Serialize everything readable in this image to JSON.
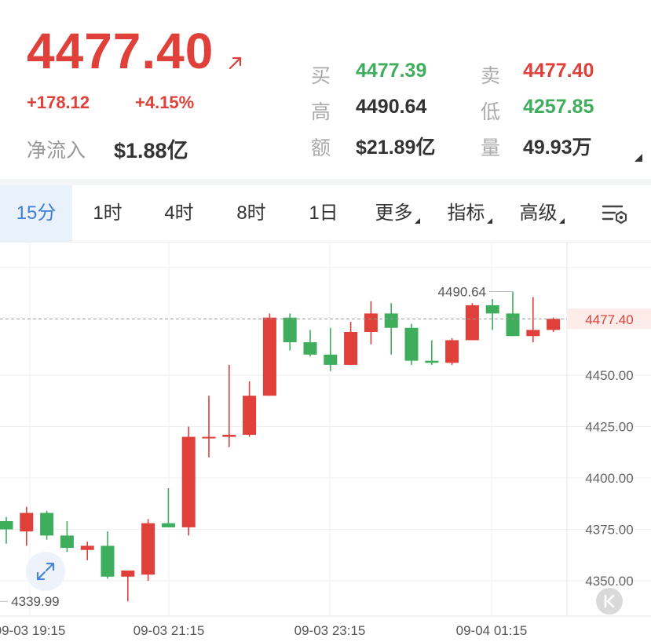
{
  "quote": {
    "price": "4477.40",
    "change": "+178.12",
    "change_pct": "+4.15%",
    "net_inflow_label": "净流入",
    "net_inflow_value": "$1.88亿",
    "up_color": "#e0403a",
    "down_color": "#3fae5c",
    "arrow_icon": "arrow-up-right-icon"
  },
  "stats": {
    "bid_label": "买",
    "bid": "4477.39",
    "ask_label": "卖",
    "ask": "4477.40",
    "high_label": "高",
    "high": "4490.64",
    "low_label": "低",
    "low": "4257.85",
    "amount_label": "额",
    "amount": "$21.89亿",
    "volume_label": "量",
    "volume": "49.93万"
  },
  "tabs": [
    {
      "label": "15分",
      "active": true
    },
    {
      "label": "1时"
    },
    {
      "label": "4时"
    },
    {
      "label": "8时"
    },
    {
      "label": "1日"
    },
    {
      "label": "更多",
      "dropdown": true
    },
    {
      "label": "指标",
      "dropdown": true
    },
    {
      "label": "高级",
      "dropdown": true
    }
  ],
  "icons": {
    "settings": "chart-settings-icon",
    "expand": "expand-icon",
    "k": "k-line-icon"
  },
  "chart_data": {
    "type": "candlestick",
    "interval": "15分",
    "y_ticks": [
      4450.0,
      4425.0,
      4400.0,
      4375.0,
      4350.0
    ],
    "y_tick_labels": [
      "4450.00",
      "4425.00",
      "4400.00",
      "4375.00",
      "4350.00"
    ],
    "x_tick_labels": [
      "09-03 19:15",
      "09-03 21:15",
      "09-03 23:15",
      "09-04 01:15"
    ],
    "current_price": 4477.4,
    "current_price_label": "4477.40",
    "high_annotation": {
      "value": 4490.64,
      "label": "4490.64"
    },
    "low_annotation": {
      "value": 4339.99,
      "label": "4339.99"
    },
    "grid": true,
    "candles": [
      {
        "o": 4379,
        "h": 4381,
        "l": 4368,
        "c": 4375
      },
      {
        "o": 4374,
        "h": 4386,
        "l": 4367,
        "c": 4383
      },
      {
        "o": 4383,
        "h": 4384,
        "l": 4370,
        "c": 4372
      },
      {
        "o": 4372,
        "h": 4379,
        "l": 4364,
        "c": 4366
      },
      {
        "o": 4365,
        "h": 4369,
        "l": 4360,
        "c": 4367
      },
      {
        "o": 4367,
        "h": 4374,
        "l": 4351,
        "c": 4352
      },
      {
        "o": 4352,
        "h": 4355,
        "l": 4340,
        "c": 4355
      },
      {
        "o": 4353,
        "h": 4380,
        "l": 4350,
        "c": 4378
      },
      {
        "o": 4378,
        "h": 4395,
        "l": 4376,
        "c": 4376
      },
      {
        "o": 4376,
        "h": 4425,
        "l": 4372,
        "c": 4420
      },
      {
        "o": 4420,
        "h": 4440,
        "l": 4410,
        "c": 4420
      },
      {
        "o": 4420,
        "h": 4455,
        "l": 4415,
        "c": 4421
      },
      {
        "o": 4421,
        "h": 4447,
        "l": 4420,
        "c": 4440
      },
      {
        "o": 4440,
        "h": 4480,
        "l": 4440,
        "c": 4478
      },
      {
        "o": 4478,
        "h": 4480,
        "l": 4462,
        "c": 4466
      },
      {
        "o": 4466,
        "h": 4472,
        "l": 4459,
        "c": 4460
      },
      {
        "o": 4460,
        "h": 4473,
        "l": 4452,
        "c": 4455
      },
      {
        "o": 4455,
        "h": 4476,
        "l": 4455,
        "c": 4471
      },
      {
        "o": 4471,
        "h": 4486,
        "l": 4465,
        "c": 4480
      },
      {
        "o": 4480,
        "h": 4485,
        "l": 4460,
        "c": 4473
      },
      {
        "o": 4473,
        "h": 4475,
        "l": 4455,
        "c": 4457
      },
      {
        "o": 4457,
        "h": 4467,
        "l": 4455,
        "c": 4456
      },
      {
        "o": 4456,
        "h": 4468,
        "l": 4455,
        "c": 4467
      },
      {
        "o": 4467,
        "h": 4485,
        "l": 4467,
        "c": 4484
      },
      {
        "o": 4484,
        "h": 4487,
        "l": 4472,
        "c": 4480
      },
      {
        "o": 4480,
        "h": 4490.64,
        "l": 4469,
        "c": 4469
      },
      {
        "o": 4469,
        "h": 4488,
        "l": 4466,
        "c": 4472
      },
      {
        "o": 4472,
        "h": 4478,
        "l": 4471,
        "c": 4477.4
      }
    ]
  }
}
